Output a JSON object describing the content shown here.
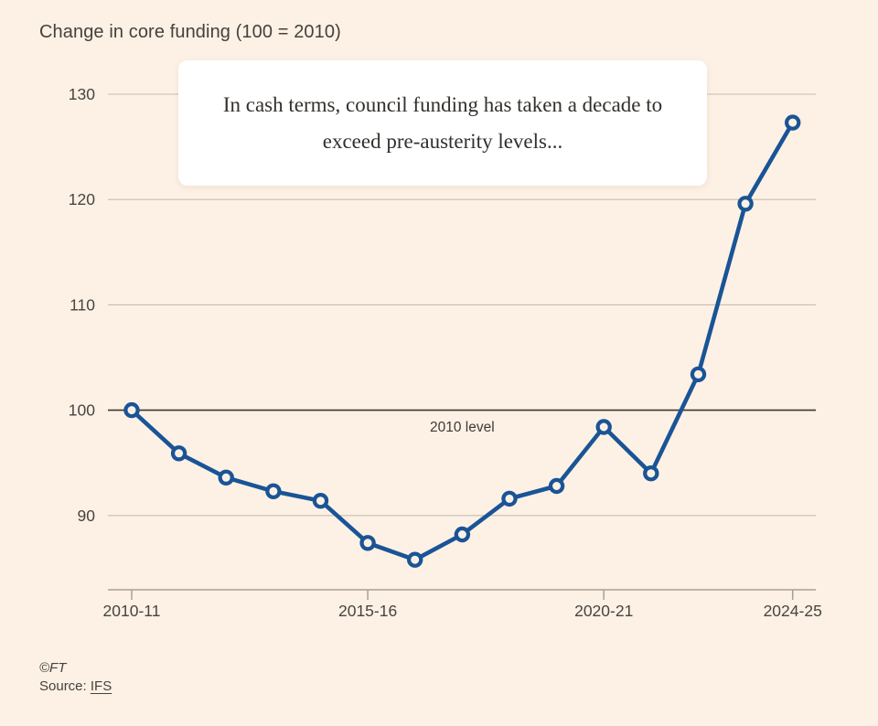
{
  "header": {
    "title": "Change in core funding (100 = 2010)"
  },
  "annotation": {
    "text": "In cash terms, council funding has taken a decade to exceed pre-austerity levels..."
  },
  "footer": {
    "copyright": "©FT",
    "source_label": "Source: ",
    "source_link": "IFS"
  },
  "chart_data": {
    "type": "line",
    "title": "Change in core funding (100 = 2010)",
    "x": [
      "2010-11",
      "2011-12",
      "2012-13",
      "2013-14",
      "2014-15",
      "2015-16",
      "2016-17",
      "2017-18",
      "2018-19",
      "2019-20",
      "2020-21",
      "2021-22",
      "2022-23",
      "2023-24",
      "2024-25"
    ],
    "values": [
      100,
      95.9,
      93.6,
      92.3,
      91.4,
      87.4,
      85.8,
      88.2,
      91.6,
      92.8,
      98.4,
      94.0,
      103.4,
      119.6,
      127.3
    ],
    "y_ticks": [
      90,
      100,
      110,
      120,
      130
    ],
    "x_tick_indices": [
      0,
      5,
      10,
      14
    ],
    "x_tick_labels": [
      "2010-11",
      "2015-16",
      "2020-21",
      "2024-25"
    ],
    "ylim": [
      84,
      131
    ],
    "grid": "horizontal",
    "legend": "none",
    "reference_line": {
      "value": 100,
      "label": "2010 level"
    },
    "colors": {
      "line": "#1A5496",
      "marker_fill": "#FDF1E5",
      "gridline": "#C6BCB2",
      "reference_line": "#3A3631",
      "axis": "#A8A095",
      "tick_text": "#484440"
    }
  }
}
